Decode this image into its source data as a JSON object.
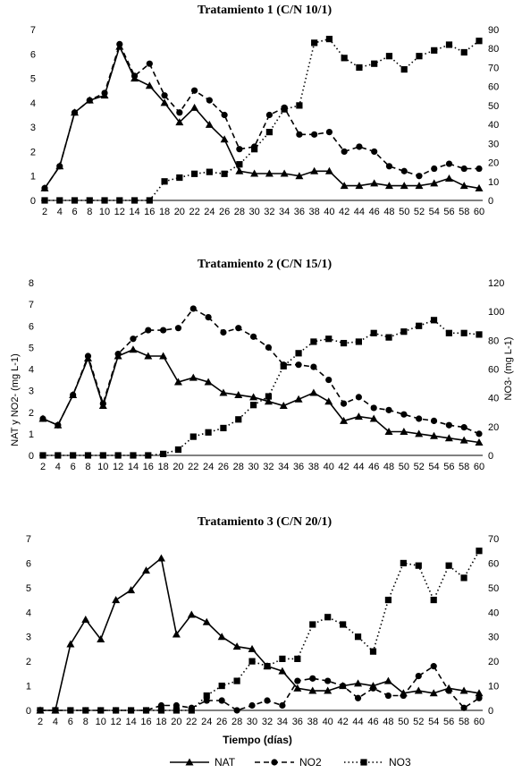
{
  "figure": {
    "xlabel": "Tiempo (días)",
    "ylabel_left": "NAT y NO2- (mg L-1)",
    "ylabel_right": "NO3- (mg L-1)",
    "legend": [
      "NAT",
      "NO2",
      "NO3"
    ],
    "colors": {
      "line": "#000000",
      "background": "#ffffff"
    }
  },
  "chart_data": [
    {
      "type": "line",
      "title": "Tratamiento 1 (C/N 10/1)",
      "x": [
        2,
        4,
        6,
        8,
        10,
        12,
        14,
        16,
        18,
        20,
        22,
        24,
        26,
        28,
        30,
        32,
        34,
        36,
        38,
        40,
        42,
        44,
        46,
        48,
        50,
        52,
        54,
        56,
        58,
        60
      ],
      "ylim_left": [
        0,
        7
      ],
      "yticks_left": [
        0,
        1,
        2,
        3,
        4,
        5,
        6,
        7
      ],
      "ylim_right": [
        0,
        90
      ],
      "yticks_right": [
        0,
        10,
        20,
        30,
        40,
        50,
        60,
        70,
        80,
        90
      ],
      "series": [
        {
          "name": "NAT",
          "axis": "left",
          "marker": "triangle",
          "dash": "solid",
          "values": [
            0.5,
            1.4,
            3.6,
            4.1,
            4.3,
            6.3,
            5.0,
            4.7,
            4.0,
            3.2,
            3.8,
            3.1,
            2.5,
            1.2,
            1.1,
            1.1,
            1.1,
            1.0,
            1.2,
            1.2,
            0.6,
            0.6,
            0.7,
            0.6,
            0.6,
            0.6,
            0.7,
            0.9,
            0.6,
            0.5
          ]
        },
        {
          "name": "NO2",
          "axis": "left",
          "marker": "circle",
          "dash": "dashed",
          "values": [
            0.5,
            1.4,
            3.6,
            4.1,
            4.4,
            6.4,
            5.1,
            5.6,
            4.3,
            3.6,
            4.5,
            4.1,
            3.5,
            2.1,
            2.2,
            3.5,
            3.8,
            2.7,
            2.7,
            2.8,
            2.0,
            2.2,
            2.0,
            1.4,
            1.2,
            1.0,
            1.3,
            1.5,
            1.3,
            1.3
          ]
        },
        {
          "name": "NO3",
          "axis": "right",
          "marker": "square",
          "dash": "dotted",
          "values": [
            0,
            0,
            0,
            0,
            0,
            0,
            0,
            0,
            10,
            12,
            14,
            15,
            14,
            19,
            27,
            36,
            48,
            50,
            83,
            85,
            75,
            70,
            72,
            76,
            69,
            76,
            79,
            82,
            78,
            84
          ]
        }
      ]
    },
    {
      "type": "line",
      "title": "Tratamiento 2 (C/N 15/1)",
      "x": [
        2,
        4,
        6,
        8,
        10,
        12,
        14,
        16,
        18,
        20,
        22,
        24,
        26,
        28,
        30,
        32,
        34,
        36,
        38,
        40,
        42,
        44,
        46,
        48,
        50,
        52,
        54,
        56,
        58,
        60
      ],
      "ylim_left": [
        0,
        8
      ],
      "yticks_left": [
        0,
        1,
        2,
        3,
        4,
        5,
        6,
        7,
        8
      ],
      "ylim_right": [
        0,
        120
      ],
      "yticks_right": [
        0,
        20,
        40,
        60,
        80,
        100,
        120
      ],
      "series": [
        {
          "name": "NAT",
          "axis": "left",
          "marker": "triangle",
          "dash": "solid",
          "values": [
            1.7,
            1.4,
            2.8,
            4.5,
            2.3,
            4.6,
            4.9,
            4.6,
            4.6,
            3.4,
            3.6,
            3.4,
            2.9,
            2.8,
            2.7,
            2.5,
            2.3,
            2.6,
            2.9,
            2.5,
            1.6,
            1.8,
            1.7,
            1.1,
            1.1,
            1.0,
            0.9,
            0.8,
            0.7,
            0.6
          ]
        },
        {
          "name": "NO2",
          "axis": "left",
          "marker": "circle",
          "dash": "dashed",
          "values": [
            1.7,
            1.4,
            2.8,
            4.6,
            2.4,
            4.7,
            5.4,
            5.8,
            5.8,
            5.9,
            6.8,
            6.4,
            5.7,
            5.9,
            5.5,
            5.0,
            4.2,
            4.2,
            4.1,
            3.5,
            2.4,
            2.7,
            2.2,
            2.1,
            1.9,
            1.7,
            1.6,
            1.4,
            1.3,
            1.0
          ]
        },
        {
          "name": "NO3",
          "axis": "right",
          "marker": "square",
          "dash": "dotted",
          "values": [
            0,
            0,
            0,
            0,
            0,
            0,
            0,
            0,
            1,
            4,
            13,
            16,
            19,
            25,
            35,
            41,
            62,
            71,
            79,
            81,
            78,
            79,
            85,
            82,
            86,
            90,
            94,
            85,
            85,
            84
          ]
        }
      ]
    },
    {
      "type": "line",
      "title": "Tratamiento 3 (C/N 20/1)",
      "x": [
        2,
        4,
        6,
        8,
        10,
        12,
        14,
        16,
        18,
        20,
        22,
        24,
        26,
        28,
        30,
        32,
        34,
        36,
        38,
        40,
        42,
        44,
        46,
        48,
        50,
        52,
        54,
        56,
        58,
        60
      ],
      "ylim_left": [
        0,
        7
      ],
      "yticks_left": [
        0,
        1,
        2,
        3,
        4,
        5,
        6,
        7
      ],
      "ylim_right": [
        0,
        70
      ],
      "yticks_right": [
        0,
        10,
        20,
        30,
        40,
        50,
        60,
        70
      ],
      "series": [
        {
          "name": "NAT",
          "axis": "left",
          "marker": "triangle",
          "dash": "solid",
          "values": [
            0,
            0,
            2.7,
            3.7,
            2.9,
            4.5,
            4.9,
            5.7,
            6.2,
            3.1,
            3.9,
            3.6,
            3.0,
            2.6,
            2.5,
            1.8,
            1.6,
            0.9,
            0.8,
            0.8,
            1.0,
            1.1,
            1.0,
            1.2,
            0.7,
            0.8,
            0.7,
            0.9,
            0.8,
            0.7
          ]
        },
        {
          "name": "NO2",
          "axis": "left",
          "marker": "circle",
          "dash": "dashed",
          "values": [
            0,
            0,
            0,
            0,
            0,
            0,
            0,
            0,
            0.2,
            0.2,
            0.1,
            0.4,
            0.4,
            0,
            0.2,
            0.4,
            0.2,
            1.2,
            1.3,
            1.2,
            1.0,
            0.5,
            0.9,
            0.6,
            0.6,
            1.4,
            1.8,
            0.8,
            0.1,
            0.5
          ]
        },
        {
          "name": "NO3",
          "axis": "right",
          "marker": "square",
          "dash": "dotted",
          "values": [
            0,
            0,
            0,
            0,
            0,
            0,
            0,
            0,
            0,
            0,
            0,
            6,
            10,
            12,
            20,
            18,
            21,
            21,
            35,
            38,
            35,
            30,
            24,
            45,
            60,
            59,
            45,
            59,
            54,
            65
          ]
        }
      ]
    }
  ]
}
